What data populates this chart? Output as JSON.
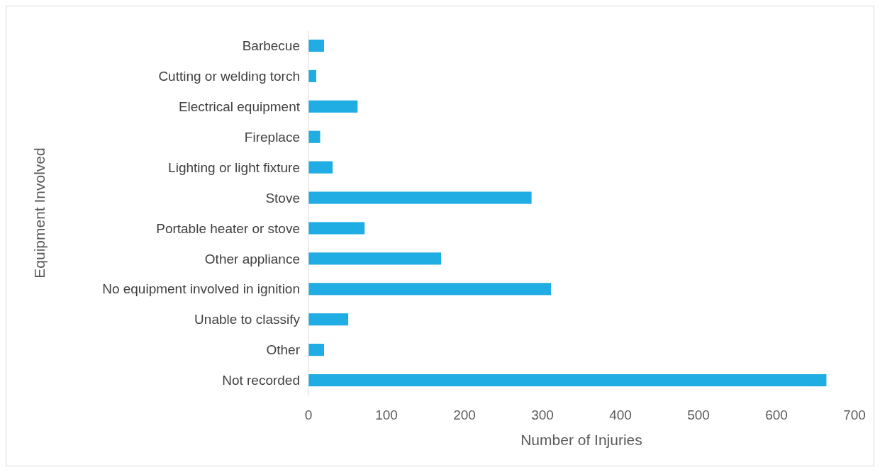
{
  "chart_data": {
    "type": "bar",
    "orientation": "horizontal",
    "xlabel": "Number of Injuries",
    "ylabel": "Equipment Involved",
    "categories": [
      "Barbecue",
      "Cutting or welding torch",
      "Electrical equipment",
      "Fireplace",
      "Lighting or light fixture",
      "Stove",
      "Portable heater or stove",
      "Other appliance",
      "No equipment involved in ignition",
      "Unable to classify",
      "Other",
      "Not recorded"
    ],
    "values": [
      20,
      10,
      63,
      15,
      31,
      286,
      72,
      170,
      311,
      51,
      20,
      664
    ],
    "color": "#1fade4",
    "xlim": [
      0,
      700
    ],
    "xticks": [
      0,
      100,
      200,
      300,
      400,
      500,
      600,
      700
    ],
    "grid": false
  }
}
